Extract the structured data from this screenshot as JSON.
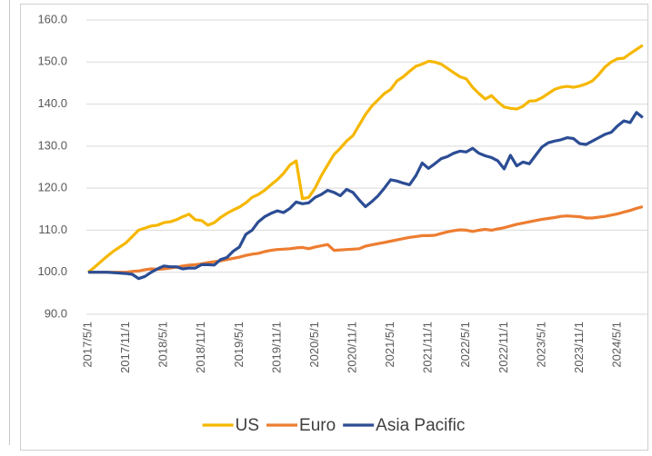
{
  "chart_data": {
    "type": "line",
    "categories": [
      "2017/5/1",
      null,
      null,
      null,
      null,
      null,
      "2017/11/1",
      null,
      null,
      null,
      null,
      null,
      "2018/5/1",
      null,
      null,
      null,
      null,
      null,
      "2018/11/1",
      null,
      null,
      null,
      null,
      null,
      "2019/5/1",
      null,
      null,
      null,
      null,
      null,
      "2019/11/1",
      null,
      null,
      null,
      null,
      null,
      "2020/5/1",
      null,
      null,
      null,
      null,
      null,
      "2020/11/1",
      null,
      null,
      null,
      null,
      null,
      "2021/5/1",
      null,
      null,
      null,
      null,
      null,
      "2021/11/1",
      null,
      null,
      null,
      null,
      null,
      "2022/5/1",
      null,
      null,
      null,
      null,
      null,
      "2022/11/1",
      null,
      null,
      null,
      null,
      null,
      "2023/5/1",
      null,
      null,
      null,
      null,
      null,
      "2023/11/1",
      null,
      null,
      null,
      null,
      null,
      "2024/5/1",
      null,
      null,
      null,
      null
    ],
    "series": [
      {
        "name": "US",
        "color": "#f5b700",
        "values": [
          100,
          101.2,
          102.5,
          103.8,
          105,
          106,
          107,
          108.5,
          110,
          110.5,
          111,
          111.2,
          111.8,
          112,
          112.5,
          113.2,
          113.8,
          112.5,
          112.3,
          111.2,
          111.8,
          113,
          114,
          114.8,
          115.5,
          116.5,
          117.8,
          118.5,
          119.5,
          120.8,
          122,
          123.5,
          125.5,
          126.5,
          117.5,
          117.8,
          120,
          123,
          125.5,
          128,
          129.5,
          131.2,
          132.5,
          135,
          137.5,
          139.5,
          141,
          142.5,
          143.5,
          145.5,
          146.5,
          147.8,
          149,
          149.5,
          150.2,
          150,
          149.5,
          148.5,
          147.5,
          146.5,
          146,
          144,
          142.5,
          141.2,
          142,
          140.5,
          139.3,
          139,
          138.8,
          139.5,
          140.7,
          140.8,
          141.5,
          142.5,
          143.5,
          144,
          144.2,
          144,
          144.3,
          144.8,
          145.5,
          147,
          148.8,
          150,
          150.8,
          150.9,
          152,
          153,
          154
        ]
      },
      {
        "name": "Euro",
        "color": "#ed7d31",
        "values": [
          100,
          100,
          100,
          100,
          100,
          100,
          100,
          100.2,
          100.3,
          100.6,
          100.8,
          100.7,
          100.8,
          101,
          101.2,
          101.5,
          101.7,
          101.8,
          102,
          102.3,
          102.5,
          102.7,
          103,
          103.3,
          103.6,
          104,
          104.3,
          104.5,
          104.9,
          105.2,
          105.4,
          105.5,
          105.6,
          105.8,
          105.9,
          105.6,
          106,
          106.3,
          106.6,
          105.2,
          105.3,
          105.4,
          105.5,
          105.6,
          106.2,
          106.5,
          106.8,
          107.1,
          107.4,
          107.7,
          108,
          108.3,
          108.5,
          108.7,
          108.7,
          108.8,
          109.2,
          109.6,
          109.9,
          110.1,
          110,
          109.7,
          110,
          110.2,
          110,
          110.3,
          110.6,
          111,
          111.4,
          111.7,
          112,
          112.3,
          112.6,
          112.8,
          113,
          113.3,
          113.4,
          113.3,
          113.2,
          112.9,
          112.9,
          113.1,
          113.3,
          113.6,
          113.9,
          114.3,
          114.7,
          115.2,
          115.6
        ]
      },
      {
        "name": "Asia Pacific",
        "color": "#2c4d94",
        "values": [
          100,
          100,
          100,
          100,
          99.9,
          99.8,
          99.7,
          99.5,
          98.5,
          99,
          100,
          100.8,
          101.5,
          101.3,
          101.3,
          100.8,
          101,
          101,
          101.8,
          101.8,
          101.7,
          103,
          103.5,
          105,
          106,
          109,
          110,
          112,
          113.2,
          114,
          114.6,
          114.2,
          115.2,
          116.7,
          116.3,
          116.5,
          117.8,
          118.5,
          119.5,
          119,
          118.2,
          119.7,
          119,
          117.2,
          115.6,
          116.8,
          118.2,
          120,
          122,
          121.7,
          121.2,
          120.8,
          123,
          126,
          124.7,
          125.8,
          127,
          127.5,
          128.3,
          128.8,
          128.6,
          129.5,
          128.3,
          127.7,
          127.3,
          126.5,
          124.6,
          127.8,
          125.3,
          126.2,
          125.8,
          127.8,
          129.8,
          130.8,
          131.2,
          131.5,
          132,
          131.8,
          130.6,
          130.4,
          131.2,
          132,
          132.8,
          133.3,
          134.8,
          136,
          135.6,
          138,
          136.8
        ]
      }
    ],
    "ylim": [
      90,
      160
    ],
    "yticks": [
      {
        "value": 90,
        "label": "90.0"
      },
      {
        "value": 100,
        "label": "100.0"
      },
      {
        "value": 110,
        "label": "110.0"
      },
      {
        "value": 120,
        "label": "120.0"
      },
      {
        "value": 130,
        "label": "130.0"
      },
      {
        "value": 140,
        "label": "140.0"
      },
      {
        "value": 150,
        "label": "150.0"
      },
      {
        "value": 160,
        "label": "160.0"
      }
    ],
    "grid": true,
    "legend": "bottom"
  }
}
